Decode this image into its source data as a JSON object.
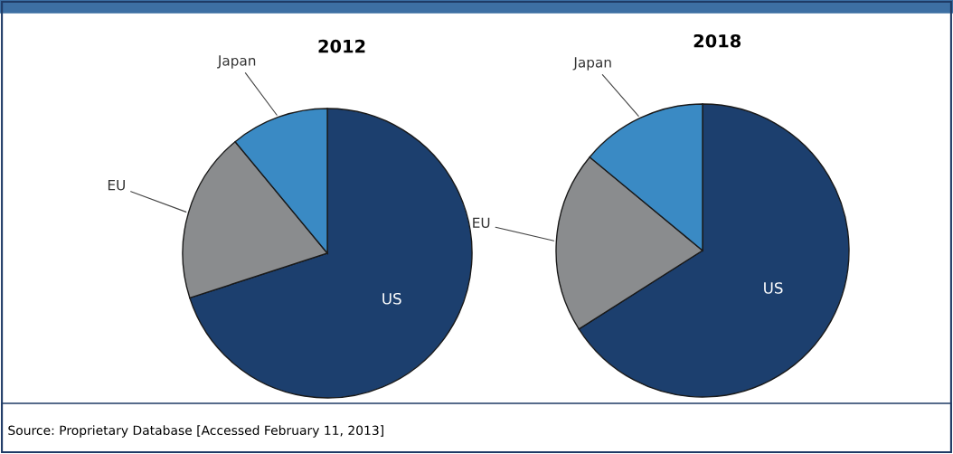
{
  "chart_data": [
    {
      "type": "pie",
      "title": "2012",
      "categories": [
        "US",
        "EU",
        "Japan"
      ],
      "values": [
        70,
        19,
        11
      ],
      "colors": [
        "#1c3f6e",
        "#8a8c8e",
        "#3a8ac4"
      ],
      "annotations": [
        "Source: Proprietary Database [Accessed February 11, 2013]"
      ]
    },
    {
      "type": "pie",
      "title": "2018",
      "categories": [
        "US",
        "EU",
        "Japan"
      ],
      "values": [
        66,
        20,
        14
      ],
      "colors": [
        "#1c3f6e",
        "#8a8c8e",
        "#3a8ac4"
      ]
    }
  ]
}
